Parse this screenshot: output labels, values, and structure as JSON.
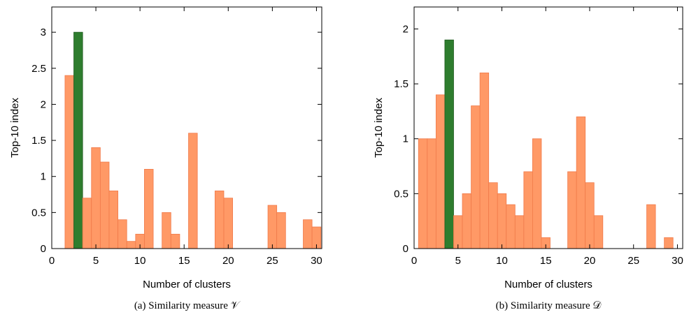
{
  "chart_data": [
    {
      "type": "bar",
      "caption": "(a) Similarity measure 𝒱",
      "xlabel": "Number of clusters",
      "ylabel": "Top-10 index",
      "xlim": [
        0,
        30.6
      ],
      "ylim": [
        0,
        3.35
      ],
      "xticks": [
        0,
        5,
        10,
        15,
        20,
        25,
        30
      ],
      "yticks": [
        0,
        0.5,
        1,
        1.5,
        2,
        2.5,
        3
      ],
      "ytick_labels": [
        "0",
        "0.5",
        "1",
        "1.5",
        "2",
        "2.5",
        "3"
      ],
      "grid": false,
      "x": [
        2,
        3,
        4,
        5,
        6,
        7,
        8,
        9,
        10,
        11,
        12,
        13,
        14,
        15,
        16,
        17,
        18,
        19,
        20,
        21,
        22,
        23,
        24,
        25,
        26,
        27,
        28,
        29,
        30
      ],
      "values": [
        2.4,
        3.0,
        0.7,
        1.4,
        1.2,
        0.8,
        0.4,
        0.1,
        0.2,
        1.1,
        0,
        0.5,
        0.2,
        0,
        1.6,
        0,
        0,
        0.8,
        0.7,
        0,
        0,
        0,
        0,
        0.6,
        0.5,
        0,
        0,
        0.4,
        0.3
      ],
      "highlight_x": 3,
      "colors": {
        "bar": "#FF9966",
        "bar_edge": "#F07A4A",
        "highlight": "#2E7D2E",
        "highlight_edge": "#1E5A1E"
      }
    },
    {
      "type": "bar",
      "caption": "(b) Similarity measure 𝒟",
      "xlabel": "Number of clusters",
      "ylabel": "Top-10 index",
      "xlim": [
        0,
        30.6
      ],
      "ylim": [
        0,
        2.2
      ],
      "xticks": [
        0,
        5,
        10,
        15,
        20,
        25,
        30
      ],
      "yticks": [
        0,
        0.5,
        1,
        1.5,
        2
      ],
      "ytick_labels": [
        "0",
        "0.5",
        "1",
        "1.5",
        "2"
      ],
      "grid": false,
      "x": [
        1,
        2,
        3,
        4,
        5,
        6,
        7,
        8,
        9,
        10,
        11,
        12,
        13,
        14,
        15,
        16,
        17,
        18,
        19,
        20,
        21,
        22,
        23,
        24,
        25,
        26,
        27,
        28,
        29
      ],
      "values": [
        1.0,
        1.0,
        1.4,
        1.9,
        0.3,
        0.5,
        1.3,
        1.6,
        0.6,
        0.5,
        0.4,
        0.3,
        0.7,
        1.0,
        0.1,
        0,
        0,
        0.7,
        1.2,
        0.6,
        0.3,
        0,
        0,
        0,
        0,
        0,
        0.4,
        0,
        0.1
      ],
      "highlight_x": 4,
      "colors": {
        "bar": "#FF9966",
        "bar_edge": "#F07A4A",
        "highlight": "#2E7D2E",
        "highlight_edge": "#1E5A1E"
      }
    }
  ]
}
